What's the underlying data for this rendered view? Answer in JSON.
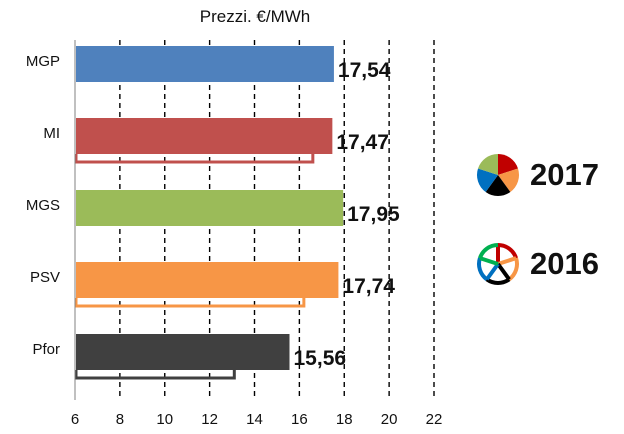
{
  "chart_data": {
    "type": "bar",
    "orientation": "horizontal",
    "title": "Prezzi. €/MWh",
    "categories": [
      "MGP",
      "MI",
      "MGS",
      "PSV",
      "Pfor"
    ],
    "series": [
      {
        "name": "2017",
        "values": [
          17.54,
          17.47,
          17.95,
          17.74,
          15.56
        ],
        "labels": [
          "17,54",
          "17,47",
          "17,95",
          "17,74",
          "15,56"
        ],
        "colors": [
          "#4f81bd",
          "#c0504d",
          "#9bbb59",
          "#f79646",
          "#404040"
        ]
      },
      {
        "name": "2016",
        "values": [
          null,
          16.6,
          null,
          16.2,
          13.1
        ],
        "style": "outline"
      }
    ],
    "xlim": [
      6,
      22
    ],
    "xticks": [
      6,
      8,
      10,
      12,
      14,
      16,
      18,
      20,
      22
    ],
    "vertical_gridlines": "dashed",
    "legend_position": "right"
  },
  "legend": {
    "items": [
      {
        "label": "2017",
        "icon": "filled-pie-icon",
        "colors": [
          "#c00000",
          "#f79646",
          "#000000",
          "#0070c0",
          "#9bbb59"
        ]
      },
      {
        "label": "2016",
        "icon": "outline-pie-icon",
        "colors": [
          "#c00000",
          "#f79646",
          "#000000",
          "#0070c0",
          "#00b050"
        ]
      }
    ]
  }
}
